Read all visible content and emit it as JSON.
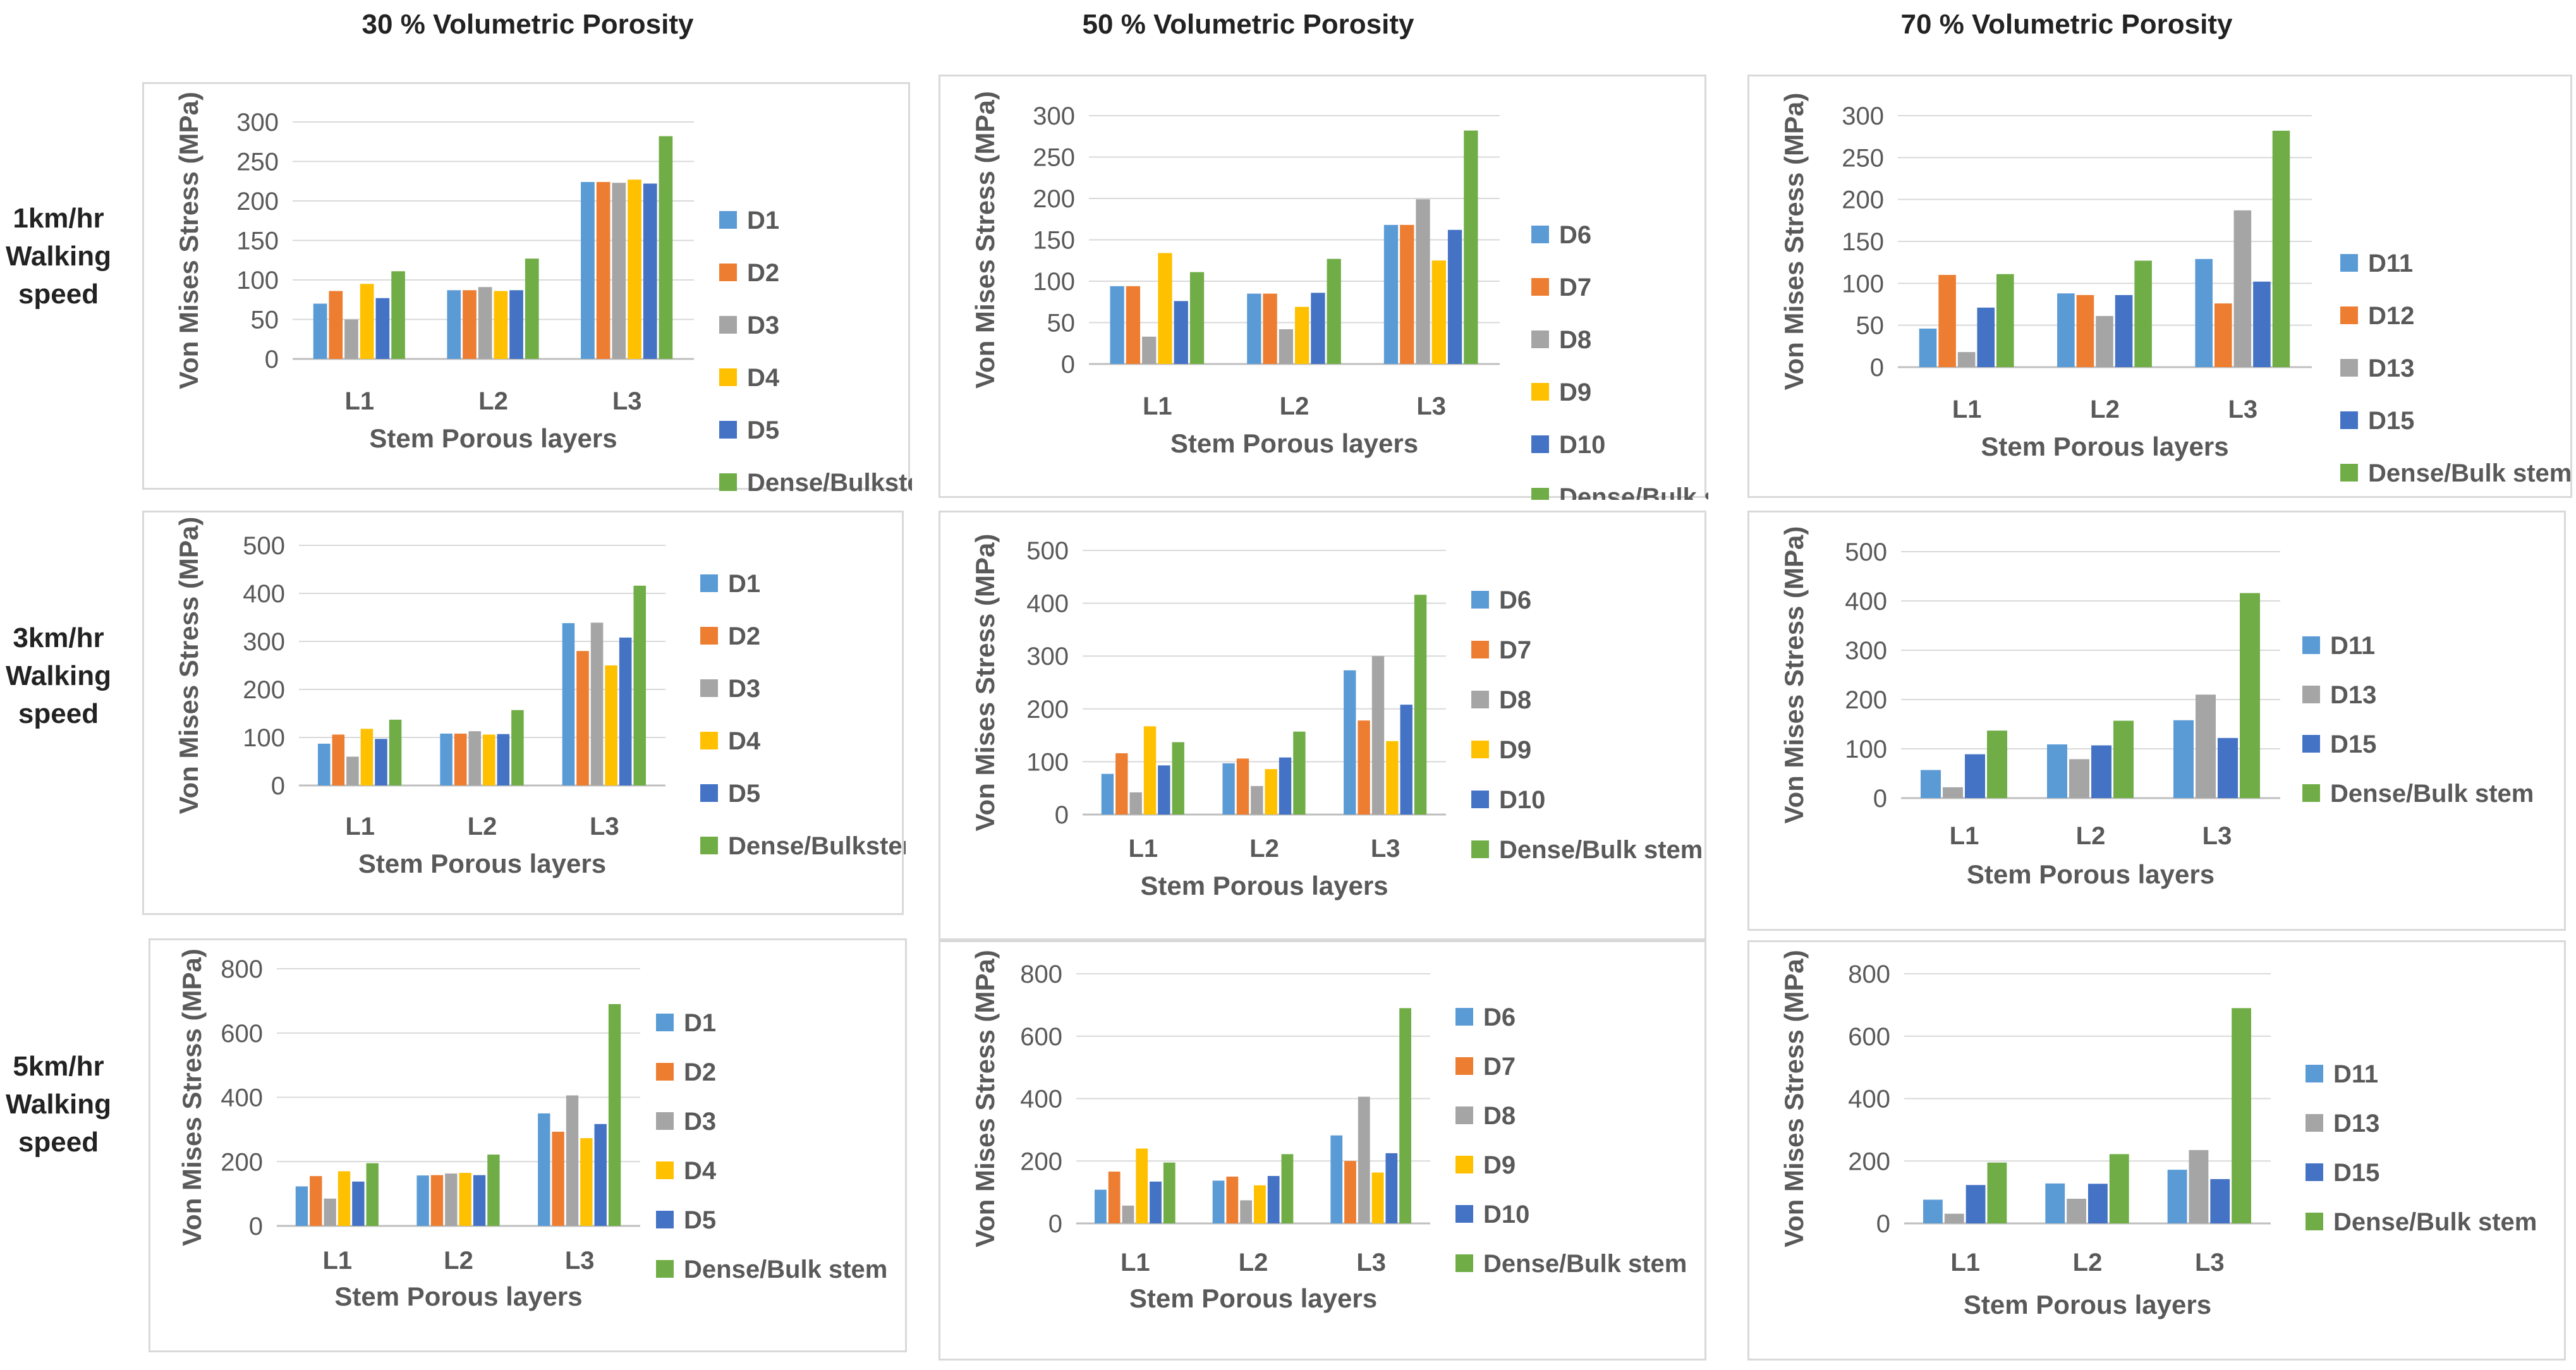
{
  "column_titles": [
    "30 % Volumetric Porosity",
    "50 % Volumetric Porosity",
    "70 % Volumetric Porosity"
  ],
  "row_labels": [
    [
      "1km/hr",
      "Walking",
      "speed"
    ],
    [
      "3km/hr",
      "Walking",
      "speed"
    ],
    [
      "5km/hr",
      "Walking",
      "speed"
    ]
  ],
  "colors": {
    "blue": "#5b9bd5",
    "orange": "#ed7d31",
    "gray": "#a5a5a5",
    "yellow": "#ffc000",
    "darkblue": "#4472c4",
    "green": "#70ad47"
  },
  "chart_data": [
    {
      "type": "bar",
      "speed": "1km/hr",
      "porosity": "30 %",
      "categories": [
        "L1",
        "L2",
        "L3"
      ],
      "xlabel": "Stem Porous layers",
      "ylabel": "Von Mises Stress (MPa)",
      "ylim": [
        0,
        300
      ],
      "ticks": [
        0,
        50,
        100,
        150,
        200,
        250,
        300
      ],
      "series": [
        {
          "name": "D1",
          "color": "blue",
          "values": [
            70,
            87,
            224
          ]
        },
        {
          "name": "D2",
          "color": "orange",
          "values": [
            86,
            87,
            224
          ]
        },
        {
          "name": "D3",
          "color": "gray",
          "values": [
            50,
            91,
            223
          ]
        },
        {
          "name": "D4",
          "color": "yellow",
          "values": [
            95,
            86,
            227
          ]
        },
        {
          "name": "D5",
          "color": "darkblue",
          "values": [
            77,
            87,
            222
          ]
        },
        {
          "name": "Dense/Bulkstem",
          "color": "green",
          "values": [
            111,
            127,
            282
          ]
        }
      ]
    },
    {
      "type": "bar",
      "speed": "1km/hr",
      "porosity": "50 %",
      "categories": [
        "L1",
        "L2",
        "L3"
      ],
      "xlabel": "Stem Porous layers",
      "ylabel": "Von Mises Stress (MPa)",
      "ylim": [
        0,
        300
      ],
      "ticks": [
        0,
        50,
        100,
        150,
        200,
        250,
        300
      ],
      "series": [
        {
          "name": "D6",
          "color": "blue",
          "values": [
            94,
            85,
            168
          ]
        },
        {
          "name": "D7",
          "color": "orange",
          "values": [
            94,
            85,
            168
          ]
        },
        {
          "name": "D8",
          "color": "gray",
          "values": [
            33,
            42,
            199
          ]
        },
        {
          "name": "D9",
          "color": "yellow",
          "values": [
            134,
            69,
            125
          ]
        },
        {
          "name": "D10",
          "color": "darkblue",
          "values": [
            76,
            86,
            162
          ]
        },
        {
          "name": "Dense/Bulk stem",
          "color": "green",
          "values": [
            111,
            127,
            282
          ]
        }
      ]
    },
    {
      "type": "bar",
      "speed": "1km/hr",
      "porosity": "70 %",
      "categories": [
        "L1",
        "L2",
        "L3"
      ],
      "xlabel": "Stem Porous layers",
      "ylabel": "Von Mises Stress (MPa)",
      "ylim": [
        0,
        300
      ],
      "ticks": [
        0,
        50,
        100,
        150,
        200,
        250,
        300
      ],
      "series": [
        {
          "name": "D11",
          "color": "blue",
          "values": [
            46,
            88,
            129
          ]
        },
        {
          "name": "D12",
          "color": "orange",
          "values": [
            110,
            86,
            76
          ]
        },
        {
          "name": "D13",
          "color": "gray",
          "values": [
            18,
            61,
            187
          ]
        },
        {
          "name": "D15",
          "color": "darkblue",
          "values": [
            71,
            86,
            102
          ]
        },
        {
          "name": "Dense/Bulk stem",
          "color": "green",
          "values": [
            111,
            127,
            282
          ]
        }
      ]
    },
    {
      "type": "bar",
      "speed": "3km/hr",
      "porosity": "30 %",
      "categories": [
        "L1",
        "L2",
        "L3"
      ],
      "xlabel": "Stem Porous layers",
      "ylabel": "Von Mises Stress (MPa)",
      "ylim": [
        0,
        500
      ],
      "ticks": [
        0,
        100,
        200,
        300,
        400,
        500
      ],
      "series": [
        {
          "name": "D1",
          "color": "blue",
          "values": [
            87,
            108,
            338
          ]
        },
        {
          "name": "D2",
          "color": "orange",
          "values": [
            106,
            108,
            280
          ]
        },
        {
          "name": "D3",
          "color": "gray",
          "values": [
            60,
            113,
            339
          ]
        },
        {
          "name": "D4",
          "color": "yellow",
          "values": [
            118,
            106,
            250
          ]
        },
        {
          "name": "D5",
          "color": "darkblue",
          "values": [
            97,
            107,
            308
          ]
        },
        {
          "name": "Dense/Bulkstem",
          "color": "green",
          "values": [
            137,
            157,
            416
          ]
        }
      ]
    },
    {
      "type": "bar",
      "speed": "3km/hr",
      "porosity": "50 %",
      "categories": [
        "L1",
        "L2",
        "L3"
      ],
      "xlabel": "Stem Porous layers",
      "ylabel": "Von Mises Stress (MPa)",
      "ylim": [
        0,
        500
      ],
      "ticks": [
        0,
        100,
        200,
        300,
        400,
        500
      ],
      "series": [
        {
          "name": "D6",
          "color": "blue",
          "values": [
            77,
            97,
            273
          ]
        },
        {
          "name": "D7",
          "color": "orange",
          "values": [
            116,
            106,
            178
          ]
        },
        {
          "name": "D8",
          "color": "gray",
          "values": [
            42,
            54,
            300
          ]
        },
        {
          "name": "D9",
          "color": "yellow",
          "values": [
            167,
            86,
            139
          ]
        },
        {
          "name": "D10",
          "color": "darkblue",
          "values": [
            93,
            108,
            208
          ]
        },
        {
          "name": "Dense/Bulk stem",
          "color": "green",
          "values": [
            137,
            157,
            416
          ]
        }
      ]
    },
    {
      "type": "bar",
      "speed": "3km/hr",
      "porosity": "70 %",
      "categories": [
        "L1",
        "L2",
        "L3"
      ],
      "xlabel": "Stem Porous layers",
      "ylabel": "Von Mises Stress (MPa)",
      "ylim": [
        0,
        500
      ],
      "ticks": [
        0,
        100,
        200,
        300,
        400,
        500
      ],
      "series": [
        {
          "name": "D11",
          "color": "blue",
          "values": [
            57,
            109,
            158
          ]
        },
        {
          "name": "D13",
          "color": "gray",
          "values": [
            22,
            79,
            210
          ]
        },
        {
          "name": "D15",
          "color": "darkblue",
          "values": [
            89,
            107,
            122
          ]
        },
        {
          "name": "Dense/Bulk stem",
          "color": "green",
          "values": [
            137,
            157,
            416
          ]
        }
      ]
    },
    {
      "type": "bar",
      "speed": "5km/hr",
      "porosity": "30 %",
      "categories": [
        "L1",
        "L2",
        "L3"
      ],
      "xlabel": "Stem Porous layers",
      "ylabel": "Von Mises Stress (MPa)",
      "ylim": [
        0,
        800
      ],
      "ticks": [
        0,
        200,
        400,
        600,
        800
      ],
      "series": [
        {
          "name": "D1",
          "color": "blue",
          "values": [
            123,
            157,
            350
          ]
        },
        {
          "name": "D2",
          "color": "orange",
          "values": [
            155,
            158,
            293
          ]
        },
        {
          "name": "D3",
          "color": "gray",
          "values": [
            85,
            163,
            406
          ]
        },
        {
          "name": "D4",
          "color": "yellow",
          "values": [
            170,
            165,
            273
          ]
        },
        {
          "name": "D5",
          "color": "darkblue",
          "values": [
            138,
            158,
            317
          ]
        },
        {
          "name": "Dense/Bulk stem",
          "color": "green",
          "values": [
            195,
            222,
            690
          ]
        }
      ]
    },
    {
      "type": "bar",
      "speed": "5km/hr",
      "porosity": "50 %",
      "categories": [
        "L1",
        "L2",
        "L3"
      ],
      "xlabel": "Stem Porous layers",
      "ylabel": "Von Mises Stress (MPa)",
      "ylim": [
        0,
        800
      ],
      "ticks": [
        0,
        200,
        400,
        600,
        800
      ],
      "series": [
        {
          "name": "D6",
          "color": "blue",
          "values": [
            108,
            137,
            282
          ]
        },
        {
          "name": "D7",
          "color": "orange",
          "values": [
            166,
            150,
            200
          ]
        },
        {
          "name": "D8",
          "color": "gray",
          "values": [
            57,
            74,
            406
          ]
        },
        {
          "name": "D9",
          "color": "yellow",
          "values": [
            240,
            122,
            163
          ]
        },
        {
          "name": "D10",
          "color": "darkblue",
          "values": [
            134,
            152,
            225
          ]
        },
        {
          "name": "Dense/Bulk stem",
          "color": "green",
          "values": [
            195,
            222,
            690
          ]
        }
      ]
    },
    {
      "type": "bar",
      "speed": "5km/hr",
      "porosity": "70 %",
      "categories": [
        "L1",
        "L2",
        "L3"
      ],
      "xlabel": "Stem Porous layers",
      "ylabel": "Von Mises Stress (MPa)",
      "ylim": [
        0,
        800
      ],
      "ticks": [
        0,
        200,
        400,
        600,
        800
      ],
      "series": [
        {
          "name": "D11",
          "color": "blue",
          "values": [
            76,
            128,
            172
          ]
        },
        {
          "name": "D13",
          "color": "gray",
          "values": [
            31,
            79,
            235
          ]
        },
        {
          "name": "D15",
          "color": "darkblue",
          "values": [
            123,
            127,
            142
          ]
        },
        {
          "name": "Dense/Bulk stem",
          "color": "green",
          "values": [
            195,
            222,
            690
          ]
        }
      ]
    }
  ]
}
